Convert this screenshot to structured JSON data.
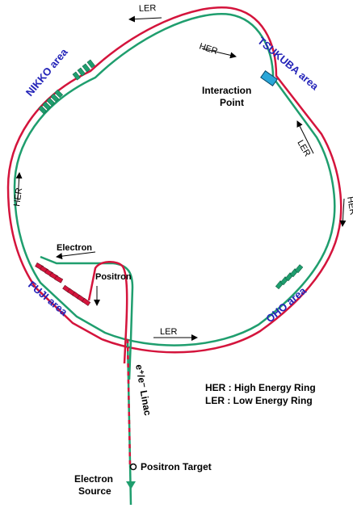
{
  "areas": {
    "nikko": "NIKKO area",
    "tsukuba": "TSUKUBA area",
    "fuji": "FUJI area",
    "oho": "OHO area"
  },
  "ring_labels": {
    "ler_top": "LER",
    "her_top": "HER",
    "ler_right": "LER",
    "her_right": "HER",
    "her_left": "HER",
    "ler_bottom": "LER"
  },
  "interaction_point": {
    "line1": "Interaction",
    "line2": "Point"
  },
  "electron_label": "Electron",
  "positron_label": "Positron",
  "linac_label": "e⁺/e⁻ Linac",
  "positron_target": "Positron Target",
  "electron_source": {
    "line1": "Electron",
    "line2": "Source"
  },
  "legend": {
    "her": "HER : High Energy Ring",
    "ler": "LER :  Low Energy Ring"
  },
  "colors": {
    "her": "#d4143c",
    "ler": "#1f9e6e",
    "area_text": "#2323b8",
    "interaction": "#2aa6d8"
  }
}
